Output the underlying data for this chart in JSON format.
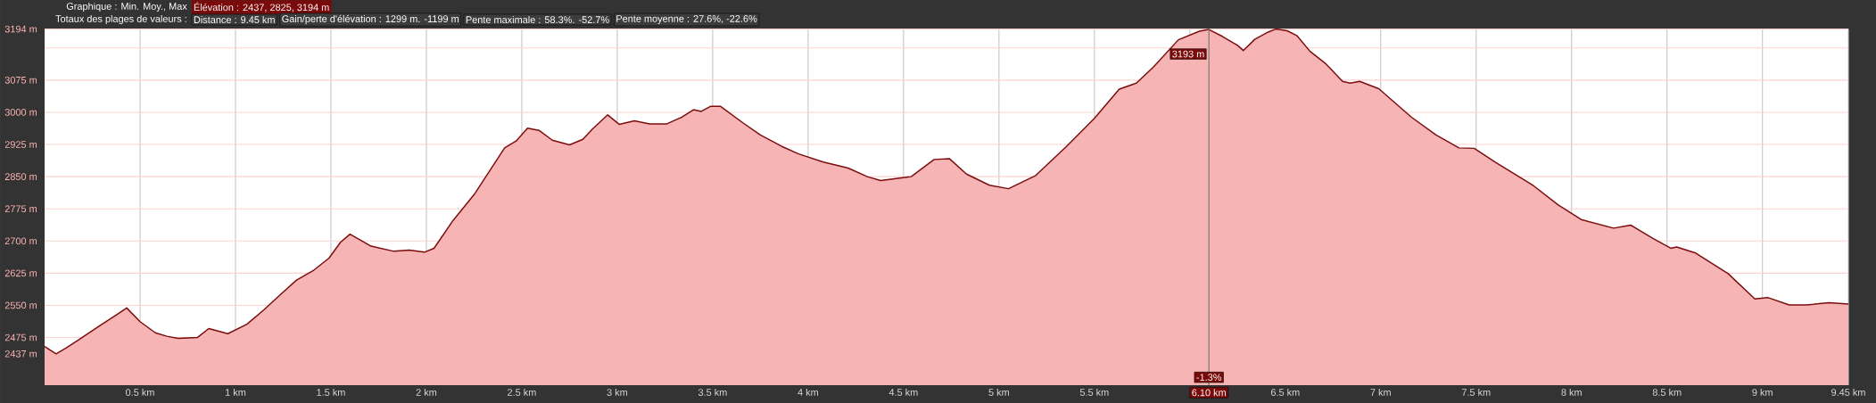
{
  "chart_data": {
    "type": "area",
    "color": "#7b0c0c",
    "x": [
      0,
      0.06,
      0.11,
      0.18,
      0.29,
      0.38,
      0.43,
      0.5,
      0.58,
      0.64,
      0.7,
      0.8,
      0.86,
      0.96,
      1.06,
      1.15,
      1.24,
      1.32,
      1.41,
      1.49,
      1.55,
      1.6,
      1.71,
      1.83,
      1.91,
      1.99,
      2.04,
      2.14,
      2.25,
      2.41,
      2.47,
      2.53,
      2.59,
      2.66,
      2.75,
      2.82,
      2.87,
      2.95,
      3.01,
      3.09,
      3.17,
      3.26,
      3.34,
      3.4,
      3.44,
      3.49,
      3.54,
      3.66,
      3.75,
      3.86,
      3.95,
      4.08,
      4.21,
      4.31,
      4.38,
      4.54,
      4.66,
      4.74,
      4.83,
      4.95,
      5.05,
      5.19,
      5.35,
      5.5,
      5.63,
      5.72,
      5.81,
      5.94,
      6.05,
      6.1,
      6.17,
      6.25,
      6.28,
      6.34,
      6.41,
      6.45,
      6.51,
      6.56,
      6.63,
      6.71,
      6.8,
      6.84,
      6.89,
      6.99,
      7.16,
      7.29,
      7.41,
      7.49,
      7.6,
      7.8,
      7.93,
      8.05,
      8.22,
      8.31,
      8.43,
      8.52,
      8.55,
      8.65,
      8.82,
      8.96,
      9.03,
      9.14,
      9.23,
      9.35,
      9.45
    ],
    "values": [
      2454,
      2437,
      2450,
      2470,
      2503,
      2529,
      2544,
      2512,
      2486,
      2478,
      2473,
      2475,
      2496,
      2484,
      2506,
      2540,
      2577,
      2609,
      2632,
      2660,
      2697,
      2716,
      2688,
      2676,
      2679,
      2674,
      2683,
      2748,
      2808,
      2917,
      2933,
      2963,
      2958,
      2935,
      2924,
      2937,
      2961,
      2994,
      2972,
      2980,
      2973,
      2973,
      2989,
      3006,
      3002,
      3014,
      3014,
      2975,
      2947,
      2921,
      2903,
      2884,
      2870,
      2850,
      2841,
      2850,
      2890,
      2892,
      2856,
      2830,
      2822,
      2852,
      2919,
      2986,
      3054,
      3068,
      3106,
      3169,
      3189,
      3193,
      3177,
      3156,
      3144,
      3170,
      3187,
      3194,
      3190,
      3179,
      3142,
      3114,
      3072,
      3068,
      3072,
      3055,
      2989,
      2947,
      2917,
      2916,
      2884,
      2829,
      2784,
      2750,
      2730,
      2737,
      2705,
      2683,
      2686,
      2672,
      2624,
      2565,
      2568,
      2551,
      2551,
      2556,
      2553
    ],
    "xlim": [
      0,
      9.45
    ],
    "xticks": [
      {
        "value": 0.5,
        "label": "0.5 km"
      },
      {
        "value": 1,
        "label": "1 km"
      },
      {
        "value": 1.5,
        "label": "1.5 km"
      },
      {
        "value": 2,
        "label": "2 km"
      },
      {
        "value": 2.5,
        "label": "2.5 km"
      },
      {
        "value": 3,
        "label": "3 km"
      },
      {
        "value": 3.5,
        "label": "3.5 km"
      },
      {
        "value": 4,
        "label": "4 km"
      },
      {
        "value": 4.5,
        "label": "4.5 km"
      },
      {
        "value": 5,
        "label": "5 km"
      },
      {
        "value": 5.5,
        "label": "5.5 km"
      },
      {
        "value": 6,
        "label": null
      },
      {
        "value": 6.5,
        "label": "6.5 km"
      },
      {
        "value": 7,
        "label": "7 km"
      },
      {
        "value": 7.5,
        "label": "7.5 km"
      },
      {
        "value": 8,
        "label": "8 km"
      },
      {
        "value": 8.5,
        "label": "8.5 km"
      },
      {
        "value": 9,
        "label": "9 km"
      },
      {
        "value": 9.45,
        "label": "9.45 km"
      }
    ],
    "ylim": [
      2364,
      3194
    ],
    "yticks": [
      {
        "value": 2437,
        "label": "2437 m"
      },
      {
        "value": 2475,
        "label": "2475 m"
      },
      {
        "value": 2550,
        "label": "2550 m"
      },
      {
        "value": 2625,
        "label": "2625 m"
      },
      {
        "value": 2700,
        "label": "2700 m"
      },
      {
        "value": 2775,
        "label": "2775 m"
      },
      {
        "value": 2850,
        "label": "2850 m"
      },
      {
        "value": 2925,
        "label": "2925 m"
      },
      {
        "value": 3000,
        "label": "3000 m"
      },
      {
        "value": 3075,
        "label": "3075 m"
      },
      {
        "value": 3150,
        "label": null
      },
      {
        "value": 3194,
        "label": "3194 m"
      }
    ],
    "grid": true,
    "ref_lines": [
      {
        "axis": "x",
        "value": 6.1,
        "label": "6.10 km",
        "color": "#7a7a7a"
      }
    ],
    "annotations": [
      "Graphique : Min. Moy., Max",
      "Élévation : 2437, 2825, 3194 m",
      "Totaux des plages de valeurs :",
      "Distance : 9.45 km",
      "Gain/perte d'élévation : 1299 m. -1199 m",
      "Pente maximale : 58.3%. -52.7%",
      "Pente moyenne : 27.6%, -22.6%",
      {
        "text": "3193 m",
        "x": 6.1,
        "y": 3193
      },
      {
        "text": "-1.3%",
        "x": 6.1
      }
    ]
  }
}
